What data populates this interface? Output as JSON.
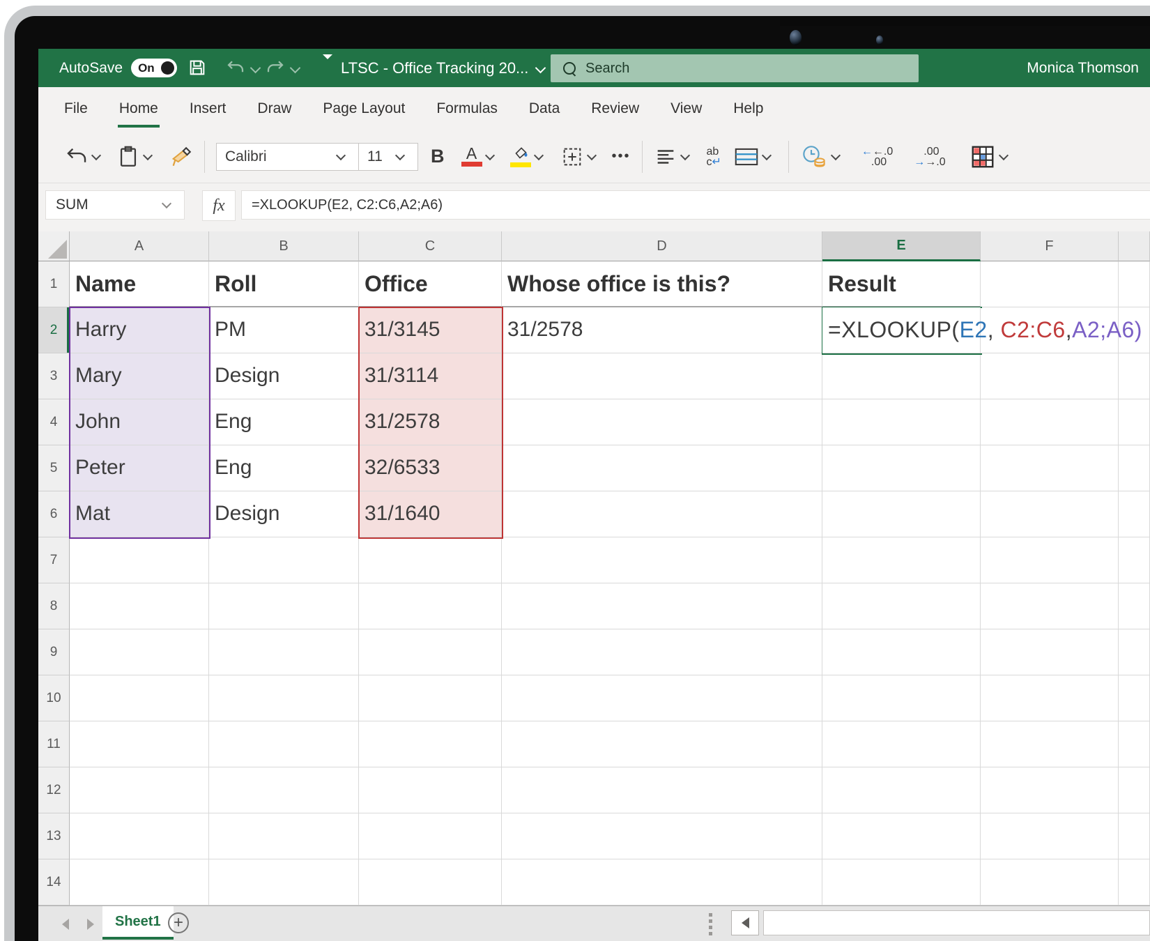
{
  "titlebar": {
    "autosave_label": "AutoSave",
    "autosave_state": "On",
    "document_title": "LTSC - Office Tracking 20...",
    "search_placeholder": "Search",
    "user_name": "Monica Thomson"
  },
  "ribbon": {
    "tabs": [
      "File",
      "Home",
      "Insert",
      "Draw",
      "Page Layout",
      "Formulas",
      "Data",
      "Review",
      "View",
      "Help"
    ],
    "active_tab": "Home",
    "toolbar": {
      "font_name": "Calibri",
      "font_size": "11",
      "bold_label": "B",
      "font_color_label": "A",
      "more_label": "•••",
      "wrap_top": "ab",
      "wrap_bottom": "c",
      "increase_decimal_top": "←.0",
      "increase_decimal_bottom": ".00",
      "decrease_decimal_top": ".00",
      "decrease_decimal_bottom": "→.0"
    }
  },
  "formula_bar": {
    "name_box_value": "SUM",
    "fx_label": "fx",
    "formula": "=XLOOKUP(E2, C2:C6,A2;A6)"
  },
  "grid": {
    "column_headers": [
      "A",
      "B",
      "C",
      "D",
      "E",
      "F"
    ],
    "row_numbers": [
      "1",
      "2",
      "3",
      "4",
      "5",
      "6",
      "7",
      "8",
      "9",
      "10",
      "11",
      "12",
      "13",
      "14"
    ],
    "active_column": "E",
    "active_row": "2",
    "active_cell": "E2",
    "cells": {
      "A1": "Name",
      "B1": "Roll",
      "C1": "Office",
      "D1": "Whose office is this?",
      "E1": "Result",
      "A2": "Harry",
      "B2": "PM",
      "C2": "31/3145",
      "D2": "31/2578",
      "A3": "Mary",
      "B3": "Design",
      "C3": "31/3114",
      "A4": "John",
      "B4": "Eng",
      "C4": "31/2578",
      "A5": "Peter",
      "B5": "Eng",
      "C5": "32/6533",
      "A6": "Mat",
      "B6": "Design",
      "C6": "31/1640"
    },
    "active_cell_formula_parts": [
      {
        "text": "=XLOOKUP(",
        "color": "#3d3d3d"
      },
      {
        "text": "E2",
        "color": "#2e75b6"
      },
      {
        "text": ", ",
        "color": "#3d3d3d"
      },
      {
        "text": "C2:C6",
        "color": "#c03a3a"
      },
      {
        "text": ",",
        "color": "#3d3d3d"
      },
      {
        "text": "A2;A6)",
        "color": "#7a5fc5"
      }
    ],
    "highlight_ranges": [
      {
        "range": "A2:A6",
        "fill": "#e8e3f0",
        "border": "#7030a0"
      },
      {
        "range": "C2:C6",
        "fill": "#f5dfde",
        "border": "#bf3434"
      }
    ]
  },
  "sheet_bar": {
    "sheet_name": "Sheet1",
    "add_label": "+"
  },
  "colors": {
    "excel_green": "#217346",
    "selection_green": "#1a6e43",
    "font_color_swatch": "#e03c32",
    "fill_color_swatch": "#ffe600"
  }
}
